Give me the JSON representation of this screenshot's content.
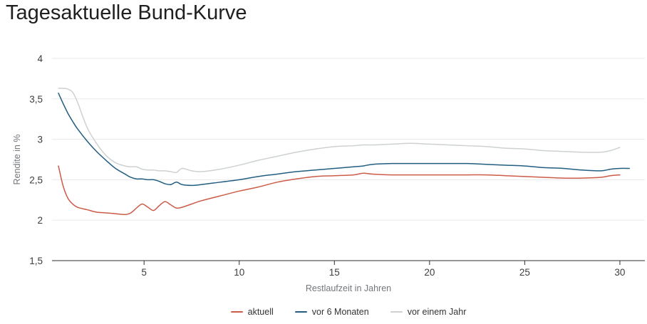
{
  "chart_data": {
    "type": "line",
    "title": "Tagesaktuelle Bund-Kurve",
    "xlabel": "Restlaufzeit in Jahren",
    "ylabel": "Rendite in %",
    "xlim": [
      0.2,
      31.3
    ],
    "ylim": [
      1.5,
      4
    ],
    "grid": "horizontal-only",
    "legend_position": "bottom-center",
    "xticks": [
      5,
      10,
      15,
      20,
      25,
      30
    ],
    "yticks": [
      {
        "value": 4,
        "label": "4"
      },
      {
        "value": 3.5,
        "label": "3,5"
      },
      {
        "value": 3,
        "label": "3"
      },
      {
        "value": 2.5,
        "label": "2,5"
      },
      {
        "value": 2,
        "label": "2"
      },
      {
        "value": 1.5,
        "label": "1,5"
      }
    ],
    "series": [
      {
        "name": "aktuell",
        "color": "#cc5b47",
        "x": [
          0.5,
          0.75,
          1,
          1.25,
          1.5,
          2,
          2.5,
          3,
          3.5,
          4,
          4.3,
          4.6,
          4.9,
          5.2,
          5.5,
          5.8,
          6.1,
          6.4,
          6.7,
          7,
          7.5,
          8,
          9,
          10,
          11,
          12,
          13,
          14,
          15,
          16,
          16.5,
          17,
          18,
          19,
          20,
          21,
          22,
          23,
          24,
          25,
          26,
          27,
          28,
          29,
          29.5,
          30
        ],
        "y": [
          2.67,
          2.42,
          2.27,
          2.2,
          2.16,
          2.13,
          2.1,
          2.09,
          2.08,
          2.07,
          2.09,
          2.15,
          2.2,
          2.16,
          2.12,
          2.18,
          2.23,
          2.19,
          2.15,
          2.16,
          2.2,
          2.24,
          2.3,
          2.36,
          2.41,
          2.47,
          2.51,
          2.54,
          2.55,
          2.56,
          2.58,
          2.57,
          2.56,
          2.56,
          2.56,
          2.56,
          2.56,
          2.56,
          2.55,
          2.54,
          2.53,
          2.52,
          2.52,
          2.53,
          2.55,
          2.56
        ]
      },
      {
        "name": "vor 6 Monaten",
        "color": "#215e80",
        "x": [
          0.5,
          0.75,
          1,
          1.25,
          1.5,
          2,
          2.5,
          3,
          3.5,
          4,
          4.3,
          4.6,
          4.9,
          5.2,
          5.5,
          5.8,
          6.1,
          6.4,
          6.7,
          7,
          7.5,
          8,
          9,
          10,
          11,
          12,
          13,
          14,
          15,
          16,
          16.5,
          17,
          18,
          19,
          20,
          21,
          22,
          23,
          24,
          25,
          26,
          27,
          28,
          29,
          29.5,
          30,
          30.5
        ],
        "y": [
          3.57,
          3.44,
          3.32,
          3.22,
          3.13,
          2.98,
          2.85,
          2.74,
          2.64,
          2.57,
          2.53,
          2.51,
          2.51,
          2.5,
          2.5,
          2.48,
          2.45,
          2.44,
          2.47,
          2.44,
          2.43,
          2.44,
          2.47,
          2.5,
          2.54,
          2.57,
          2.6,
          2.62,
          2.64,
          2.66,
          2.67,
          2.69,
          2.7,
          2.7,
          2.7,
          2.7,
          2.7,
          2.69,
          2.68,
          2.67,
          2.65,
          2.64,
          2.62,
          2.61,
          2.63,
          2.64,
          2.64
        ]
      },
      {
        "name": "vor einem Jahr",
        "color": "#cdd1d3",
        "x": [
          0.5,
          0.75,
          1,
          1.25,
          1.5,
          2,
          2.5,
          3,
          3.5,
          4,
          4.3,
          4.6,
          4.9,
          5.2,
          5.5,
          5.8,
          6.1,
          6.4,
          6.7,
          7,
          7.5,
          8,
          9,
          10,
          11,
          12,
          13,
          14,
          15,
          16,
          16.5,
          17,
          18,
          19,
          20,
          21,
          22,
          23,
          24,
          25,
          26,
          27,
          28,
          29,
          29.5,
          30
        ],
        "y": [
          3.63,
          3.63,
          3.62,
          3.58,
          3.46,
          3.15,
          2.95,
          2.8,
          2.71,
          2.67,
          2.66,
          2.66,
          2.63,
          2.62,
          2.62,
          2.61,
          2.61,
          2.6,
          2.59,
          2.64,
          2.61,
          2.6,
          2.63,
          2.68,
          2.74,
          2.79,
          2.84,
          2.88,
          2.91,
          2.92,
          2.93,
          2.93,
          2.94,
          2.95,
          2.94,
          2.93,
          2.92,
          2.91,
          2.89,
          2.88,
          2.86,
          2.85,
          2.84,
          2.84,
          2.86,
          2.9
        ]
      }
    ]
  }
}
